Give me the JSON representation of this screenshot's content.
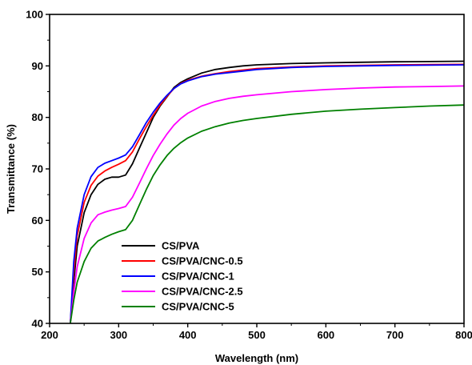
{
  "chart_data": {
    "type": "line",
    "title": "",
    "xlabel": "Wavelength (nm)",
    "ylabel": "Transmittance (%)",
    "xlim": [
      200,
      800
    ],
    "ylim": [
      40,
      100
    ],
    "x_ticks": [
      "200",
      "300",
      "400",
      "500",
      "600",
      "700",
      "800"
    ],
    "y_ticks": [
      "40",
      "50",
      "60",
      "70",
      "80",
      "90",
      "100"
    ],
    "x_tick_values": [
      200,
      300,
      400,
      500,
      600,
      700,
      800
    ],
    "y_tick_values": [
      40,
      50,
      60,
      70,
      80,
      90,
      100
    ],
    "grid": false,
    "legend_position": "bottom-left",
    "series": [
      {
        "name": "CS/PVA",
        "color": "#000000",
        "x": [
          230,
          235,
          240,
          250,
          260,
          270,
          280,
          290,
          300,
          310,
          320,
          330,
          340,
          350,
          360,
          370,
          380,
          390,
          400,
          420,
          440,
          460,
          480,
          500,
          550,
          600,
          650,
          700,
          750,
          800
        ],
        "y": [
          40,
          48,
          55,
          61.5,
          65,
          67,
          68,
          68.4,
          68.4,
          68.8,
          71,
          74,
          77,
          80,
          82.2,
          84,
          85.8,
          86.8,
          87.5,
          88.6,
          89.3,
          89.7,
          90,
          90.2,
          90.45,
          90.6,
          90.7,
          90.8,
          90.85,
          90.9
        ]
      },
      {
        "name": "CS/PVA/CNC-0.5",
        "color": "#ff0000",
        "x": [
          230,
          235,
          240,
          250,
          260,
          270,
          280,
          290,
          300,
          310,
          320,
          330,
          340,
          350,
          360,
          370,
          380,
          390,
          400,
          420,
          440,
          460,
          480,
          500,
          550,
          600,
          650,
          700,
          750,
          800
        ],
        "y": [
          40,
          50,
          57,
          63.5,
          66.8,
          68.6,
          69.6,
          70.3,
          70.9,
          71.6,
          73.3,
          75.8,
          78.2,
          80.4,
          82.4,
          84.1,
          85.6,
          86.6,
          87.2,
          88,
          88.5,
          88.9,
          89.2,
          89.5,
          89.8,
          90,
          90.1,
          90.2,
          90.25,
          90.3
        ]
      },
      {
        "name": "CS/PVA/CNC-1",
        "color": "#0000ff",
        "x": [
          230,
          235,
          240,
          250,
          260,
          270,
          280,
          290,
          300,
          310,
          320,
          330,
          340,
          350,
          360,
          370,
          380,
          390,
          400,
          420,
          440,
          460,
          480,
          500,
          550,
          600,
          650,
          700,
          750,
          800
        ],
        "y": [
          40,
          52,
          58.5,
          65,
          68.5,
          70.3,
          71.1,
          71.6,
          72.1,
          72.7,
          74.3,
          76.6,
          79,
          81,
          82.8,
          84.3,
          85.6,
          86.5,
          87.1,
          87.9,
          88.4,
          88.7,
          89,
          89.3,
          89.7,
          89.9,
          90,
          90.1,
          90.15,
          90.2
        ]
      },
      {
        "name": "CS/PVA/CNC-2.5",
        "color": "#ff00ff",
        "x": [
          230,
          235,
          240,
          250,
          260,
          270,
          280,
          290,
          300,
          310,
          320,
          330,
          340,
          350,
          360,
          370,
          380,
          390,
          400,
          420,
          440,
          460,
          480,
          500,
          550,
          600,
          650,
          700,
          750,
          800
        ],
        "y": [
          40,
          46,
          51,
          56.5,
          59.5,
          61.1,
          61.6,
          62,
          62.3,
          62.7,
          64.5,
          67.2,
          70,
          72.6,
          74.8,
          76.8,
          78.5,
          79.8,
          80.8,
          82.2,
          83.1,
          83.7,
          84.1,
          84.4,
          85,
          85.4,
          85.7,
          85.9,
          86,
          86.1
        ]
      },
      {
        "name": "CS/PVA/CNC-5",
        "color": "#008000",
        "x": [
          230,
          235,
          240,
          250,
          260,
          270,
          280,
          290,
          300,
          310,
          320,
          330,
          340,
          350,
          360,
          370,
          380,
          390,
          400,
          420,
          440,
          460,
          480,
          500,
          550,
          600,
          650,
          700,
          750,
          800
        ],
        "y": [
          40,
          44.5,
          48,
          52,
          54.6,
          56,
          56.7,
          57.3,
          57.8,
          58.2,
          60,
          63,
          66,
          68.7,
          70.8,
          72.6,
          74,
          75.1,
          76,
          77.3,
          78.2,
          78.9,
          79.4,
          79.8,
          80.6,
          81.2,
          81.6,
          81.9,
          82.2,
          82.4
        ]
      }
    ]
  }
}
